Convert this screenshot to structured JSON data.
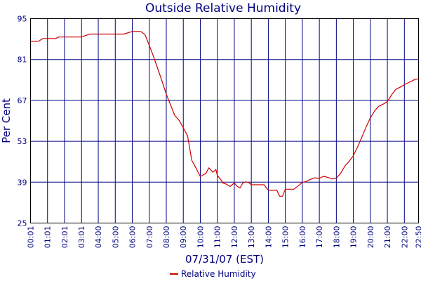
{
  "chart_data": {
    "type": "line",
    "title": "Outside Relative Humidity",
    "xlabel": "07/31/07 (EST)",
    "ylabel": "Per Cent",
    "ylim": [
      25,
      95
    ],
    "yticks": [
      "95",
      "81",
      "67",
      "53",
      "39",
      "25"
    ],
    "xticks": [
      "00:01",
      "01:01",
      "02:01",
      "03:01",
      "04:00",
      "05:00",
      "06:00",
      "07:00",
      "08:00",
      "09:00",
      "10:00",
      "11:00",
      "12:00",
      "13:00",
      "14:00",
      "15:00",
      "16:00",
      "17:00",
      "18:00",
      "19:00",
      "20:00",
      "21:00",
      "22:00",
      "22:50"
    ],
    "grid": true,
    "legend_position": "bottom",
    "series": [
      {
        "name": "Relative Humidity",
        "color": "#cc0000",
        "x": [
          "00:01",
          "00:30",
          "00:45",
          "01:10",
          "01:30",
          "01:40",
          "02:00",
          "03:00",
          "03:30",
          "04:00",
          "04:30",
          "05:00",
          "05:30",
          "06:00",
          "06:30",
          "06:45",
          "07:00",
          "07:15",
          "07:30",
          "07:45",
          "08:00",
          "08:15",
          "08:30",
          "08:45",
          "09:00",
          "09:15",
          "09:30",
          "09:45",
          "10:00",
          "10:10",
          "10:20",
          "10:30",
          "10:45",
          "10:55",
          "11:00",
          "11:10",
          "11:20",
          "11:30",
          "11:45",
          "12:00",
          "12:10",
          "12:20",
          "12:30",
          "12:40",
          "12:50",
          "13:00",
          "13:15",
          "13:30",
          "13:45",
          "14:00",
          "14:15",
          "14:30",
          "14:40",
          "14:50",
          "15:00",
          "15:15",
          "15:30",
          "15:45",
          "16:00",
          "16:15",
          "16:30",
          "16:45",
          "17:00",
          "17:15",
          "17:30",
          "17:45",
          "18:00",
          "18:15",
          "18:30",
          "18:45",
          "19:00",
          "19:15",
          "19:30",
          "19:45",
          "20:00",
          "20:15",
          "20:30",
          "20:45",
          "21:00",
          "21:15",
          "21:30",
          "21:45",
          "22:00",
          "22:15",
          "22:30",
          "22:40",
          "22:50"
        ],
        "values": [
          87.2,
          87.3,
          88.2,
          88.2,
          88.2,
          88.7,
          88.7,
          88.7,
          89.7,
          89.7,
          89.7,
          89.7,
          89.7,
          90.6,
          90.6,
          89.5,
          85.8,
          82.0,
          77.8,
          73.6,
          69.1,
          65.5,
          61.8,
          60.2,
          57.6,
          54.9,
          46.5,
          43.8,
          40.9,
          41.5,
          42.0,
          43.9,
          42.4,
          43.3,
          41.3,
          40.2,
          38.7,
          38.4,
          37.5,
          38.7,
          37.6,
          37.0,
          38.7,
          39.1,
          38.9,
          38.1,
          38.1,
          38.1,
          38.1,
          36.2,
          36.2,
          36.2,
          34.2,
          34.2,
          36.6,
          36.6,
          36.6,
          37.7,
          38.9,
          39.3,
          40.0,
          40.5,
          40.3,
          41.0,
          40.6,
          40.1,
          40.4,
          42.0,
          44.5,
          46.1,
          48.1,
          51.1,
          54.4,
          57.9,
          61.0,
          63.4,
          65.0,
          65.7,
          66.6,
          68.9,
          70.8,
          71.5,
          72.4,
          73.1,
          73.8,
          74.3,
          74.3
        ]
      }
    ]
  }
}
